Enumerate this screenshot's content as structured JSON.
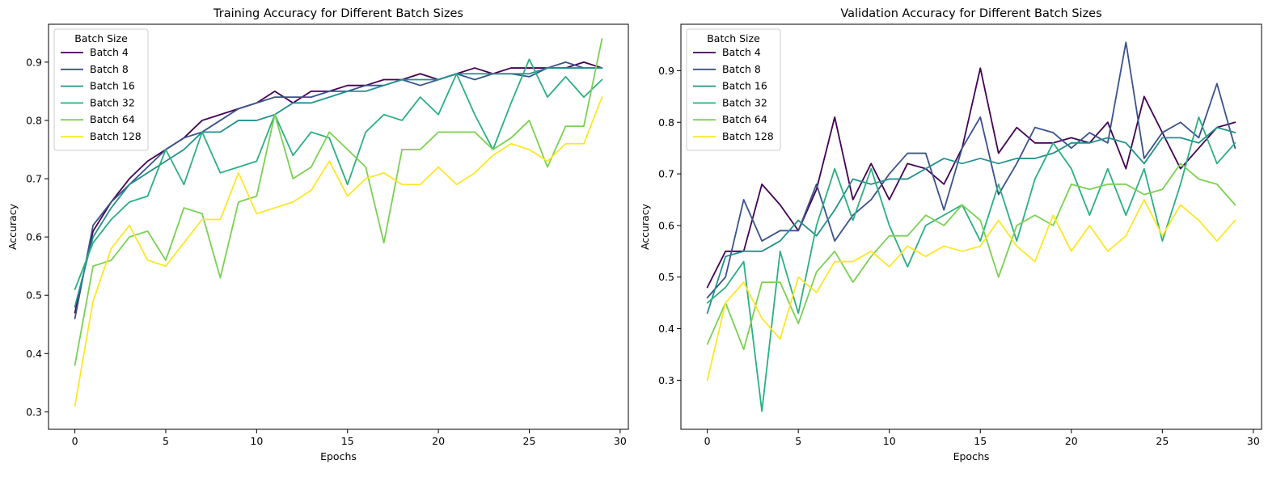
{
  "chart_data": [
    {
      "type": "line",
      "title": "Training Accuracy for Different Batch Sizes",
      "xlabel": "Epochs",
      "ylabel": "Accuracy",
      "xlim": [
        -1.45,
        30.45
      ],
      "ylim": [
        0.27,
        0.965
      ],
      "xticks": [
        0,
        5,
        10,
        15,
        20,
        25,
        30
      ],
      "yticks": [
        0.3,
        0.4,
        0.5,
        0.6,
        0.7,
        0.8,
        0.9
      ],
      "grid": false,
      "legend": {
        "title": "Batch Size",
        "placement": "top-left"
      },
      "x": [
        0,
        1,
        2,
        3,
        4,
        5,
        6,
        7,
        8,
        9,
        10,
        11,
        12,
        13,
        14,
        15,
        16,
        17,
        18,
        19,
        20,
        21,
        22,
        23,
        24,
        25,
        26,
        27,
        28,
        29
      ],
      "series": [
        {
          "name": "Batch 4",
          "color": "#440154",
          "values": [
            0.47,
            0.61,
            0.66,
            0.7,
            0.73,
            0.75,
            0.77,
            0.8,
            0.81,
            0.82,
            0.83,
            0.85,
            0.83,
            0.85,
            0.85,
            0.86,
            0.86,
            0.87,
            0.87,
            0.88,
            0.87,
            0.88,
            0.89,
            0.88,
            0.89,
            0.89,
            0.89,
            0.89,
            0.9,
            0.89
          ]
        },
        {
          "name": "Batch 8",
          "color": "#3b528b",
          "values": [
            0.46,
            0.62,
            0.66,
            0.69,
            0.72,
            0.75,
            0.77,
            0.78,
            0.8,
            0.82,
            0.83,
            0.84,
            0.84,
            0.84,
            0.85,
            0.85,
            0.86,
            0.86,
            0.87,
            0.86,
            0.87,
            0.88,
            0.87,
            0.88,
            0.88,
            0.875,
            0.89,
            0.9,
            0.89,
            0.89
          ]
        },
        {
          "name": "Batch 16",
          "color": "#21918c",
          "values": [
            0.48,
            0.6,
            0.65,
            0.69,
            0.71,
            0.73,
            0.75,
            0.78,
            0.78,
            0.8,
            0.8,
            0.81,
            0.83,
            0.83,
            0.84,
            0.85,
            0.85,
            0.86,
            0.87,
            0.87,
            0.87,
            0.88,
            0.88,
            0.88,
            0.88,
            0.88,
            0.89,
            0.89,
            0.89,
            0.89
          ]
        },
        {
          "name": "Batch 32",
          "color": "#2ab07f",
          "values": [
            0.51,
            0.59,
            0.63,
            0.66,
            0.67,
            0.75,
            0.69,
            0.78,
            0.71,
            0.72,
            0.73,
            0.81,
            0.74,
            0.78,
            0.77,
            0.69,
            0.78,
            0.81,
            0.8,
            0.84,
            0.81,
            0.88,
            0.81,
            0.75,
            0.83,
            0.905,
            0.84,
            0.875,
            0.84,
            0.87
          ]
        },
        {
          "name": "Batch 64",
          "color": "#7ad151",
          "values": [
            0.38,
            0.55,
            0.56,
            0.6,
            0.61,
            0.56,
            0.65,
            0.64,
            0.53,
            0.66,
            0.67,
            0.81,
            0.7,
            0.72,
            0.78,
            0.75,
            0.72,
            0.59,
            0.75,
            0.75,
            0.78,
            0.78,
            0.78,
            0.75,
            0.77,
            0.8,
            0.72,
            0.79,
            0.79,
            0.94
          ]
        },
        {
          "name": "Batch 128",
          "color": "#fde725",
          "values": [
            0.31,
            0.49,
            0.58,
            0.62,
            0.56,
            0.55,
            0.59,
            0.63,
            0.63,
            0.71,
            0.64,
            0.65,
            0.66,
            0.68,
            0.73,
            0.67,
            0.7,
            0.71,
            0.69,
            0.69,
            0.72,
            0.69,
            0.71,
            0.74,
            0.76,
            0.75,
            0.73,
            0.76,
            0.76,
            0.84
          ]
        }
      ]
    },
    {
      "type": "line",
      "title": "Validation Accuracy for Different Batch Sizes",
      "xlabel": "Epochs",
      "ylabel": "Accuracy",
      "xlim": [
        -1.45,
        30.45
      ],
      "ylim": [
        0.205,
        0.99
      ],
      "xticks": [
        0,
        5,
        10,
        15,
        20,
        25,
        30
      ],
      "yticks": [
        0.3,
        0.4,
        0.5,
        0.6,
        0.7,
        0.8,
        0.9
      ],
      "grid": false,
      "legend": {
        "title": "Batch Size",
        "placement": "top-left"
      },
      "x": [
        0,
        1,
        2,
        3,
        4,
        5,
        6,
        7,
        8,
        9,
        10,
        11,
        12,
        13,
        14,
        15,
        16,
        17,
        18,
        19,
        20,
        21,
        22,
        23,
        24,
        25,
        26,
        27,
        28,
        29
      ],
      "series": [
        {
          "name": "Batch 4",
          "color": "#440154",
          "values": [
            0.48,
            0.55,
            0.55,
            0.68,
            0.64,
            0.59,
            0.67,
            0.81,
            0.65,
            0.72,
            0.65,
            0.72,
            0.71,
            0.68,
            0.75,
            0.905,
            0.74,
            0.79,
            0.76,
            0.76,
            0.77,
            0.76,
            0.8,
            0.71,
            0.85,
            0.78,
            0.71,
            0.75,
            0.79,
            0.8
          ]
        },
        {
          "name": "Batch 8",
          "color": "#3b528b",
          "values": [
            0.46,
            0.5,
            0.65,
            0.57,
            0.59,
            0.59,
            0.68,
            0.57,
            0.62,
            0.65,
            0.7,
            0.74,
            0.74,
            0.63,
            0.75,
            0.81,
            0.66,
            0.72,
            0.79,
            0.78,
            0.75,
            0.78,
            0.76,
            0.955,
            0.73,
            0.78,
            0.8,
            0.77,
            0.875,
            0.75
          ]
        },
        {
          "name": "Batch 16",
          "color": "#21918c",
          "values": [
            0.43,
            0.54,
            0.55,
            0.55,
            0.57,
            0.61,
            0.58,
            0.63,
            0.69,
            0.68,
            0.69,
            0.69,
            0.71,
            0.73,
            0.72,
            0.73,
            0.72,
            0.73,
            0.73,
            0.74,
            0.76,
            0.76,
            0.77,
            0.76,
            0.72,
            0.77,
            0.77,
            0.76,
            0.79,
            0.78
          ]
        },
        {
          "name": "Batch 32",
          "color": "#2ab07f",
          "values": [
            0.45,
            0.48,
            0.53,
            0.24,
            0.55,
            0.43,
            0.6,
            0.71,
            0.61,
            0.71,
            0.6,
            0.52,
            0.6,
            0.62,
            0.64,
            0.57,
            0.68,
            0.57,
            0.69,
            0.76,
            0.71,
            0.62,
            0.71,
            0.62,
            0.71,
            0.57,
            0.68,
            0.81,
            0.72,
            0.76
          ]
        },
        {
          "name": "Batch 64",
          "color": "#7ad151",
          "values": [
            0.37,
            0.45,
            0.36,
            0.49,
            0.49,
            0.41,
            0.51,
            0.55,
            0.49,
            0.54,
            0.58,
            0.58,
            0.62,
            0.6,
            0.64,
            0.61,
            0.5,
            0.6,
            0.62,
            0.6,
            0.68,
            0.67,
            0.68,
            0.68,
            0.66,
            0.67,
            0.72,
            0.69,
            0.68,
            0.64
          ]
        },
        {
          "name": "Batch 128",
          "color": "#fde725",
          "values": [
            0.3,
            0.45,
            0.49,
            0.42,
            0.38,
            0.5,
            0.47,
            0.53,
            0.53,
            0.55,
            0.52,
            0.56,
            0.54,
            0.56,
            0.55,
            0.56,
            0.61,
            0.56,
            0.53,
            0.62,
            0.55,
            0.6,
            0.55,
            0.58,
            0.65,
            0.58,
            0.64,
            0.61,
            0.57,
            0.61
          ]
        }
      ]
    }
  ]
}
